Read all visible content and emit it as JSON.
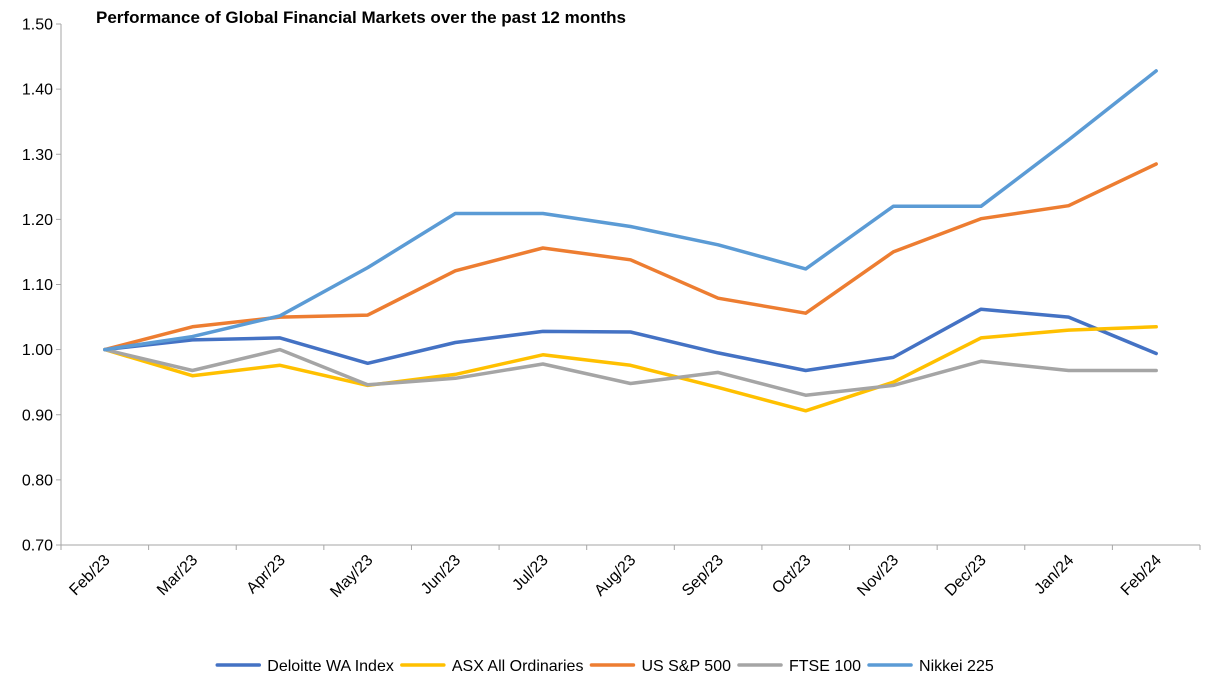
{
  "chart_data": {
    "type": "line",
    "title": "Performance of Global Financial Markets over the past 12 months",
    "xlabel": "",
    "ylabel": "",
    "ylim": [
      0.7,
      1.5
    ],
    "yticks": [
      "0.70",
      "0.80",
      "0.90",
      "1.00",
      "1.10",
      "1.20",
      "1.30",
      "1.40",
      "1.50"
    ],
    "ytick_values": [
      0.7,
      0.8,
      0.9,
      1.0,
      1.1,
      1.2,
      1.3,
      1.4,
      1.5
    ],
    "grid": false,
    "legend_position": "bottom",
    "categories": [
      "Feb/23",
      "Mar/23",
      "Apr/23",
      "May/23",
      "Jun/23",
      "Jul/23",
      "Aug/23",
      "Sep/23",
      "Oct/23",
      "Nov/23",
      "Dec/23",
      "Jan/24",
      "Feb/24"
    ],
    "series": [
      {
        "name": "Deloitte WA Index",
        "color": "#4472c4",
        "values": [
          1.0,
          1.015,
          1.018,
          0.979,
          1.011,
          1.028,
          1.027,
          0.995,
          0.968,
          0.988,
          1.062,
          1.05,
          0.994
        ]
      },
      {
        "name": "ASX All Ordinaries",
        "color": "#ffc000",
        "values": [
          1.0,
          0.96,
          0.976,
          0.945,
          0.962,
          0.992,
          0.976,
          0.942,
          0.906,
          0.95,
          1.018,
          1.03,
          1.035
        ]
      },
      {
        "name": "US S&P 500",
        "color": "#ed7d31",
        "values": [
          1.0,
          1.035,
          1.05,
          1.053,
          1.121,
          1.156,
          1.138,
          1.079,
          1.056,
          1.15,
          1.201,
          1.221,
          1.285
        ]
      },
      {
        "name": "FTSE 100",
        "color": "#a5a5a5",
        "values": [
          1.0,
          0.968,
          1.0,
          0.946,
          0.956,
          0.978,
          0.948,
          0.965,
          0.93,
          0.945,
          0.982,
          0.968,
          0.968
        ]
      },
      {
        "name": "Nikkei 225",
        "color": "#5b9bd5",
        "values": [
          1.0,
          1.02,
          1.052,
          1.126,
          1.209,
          1.209,
          1.189,
          1.161,
          1.124,
          1.22,
          1.22,
          1.322,
          1.428
        ]
      }
    ]
  }
}
